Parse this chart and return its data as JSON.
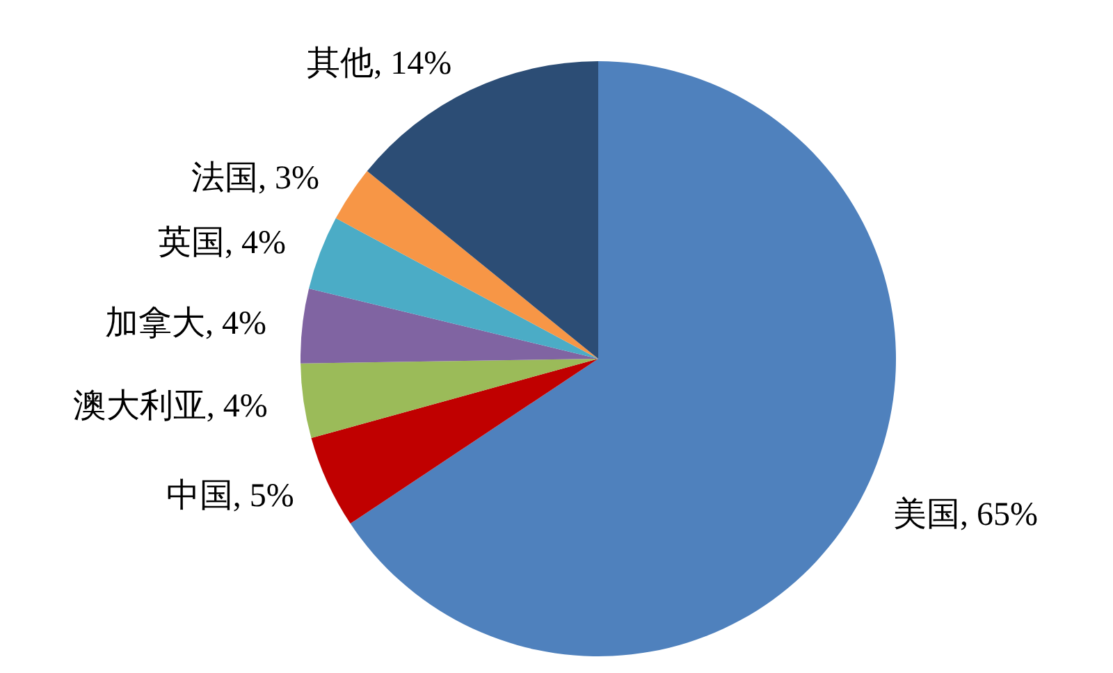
{
  "chart_data": {
    "type": "pie",
    "categories": [
      "美国",
      "中国",
      "澳大利亚",
      "加拿大",
      "英国",
      "法国",
      "其他"
    ],
    "values": [
      65,
      5,
      4,
      4,
      4,
      3,
      14
    ],
    "value_labels": [
      "65%",
      "5%",
      "4%",
      "4%",
      "4%",
      "3%",
      "14%"
    ],
    "colors": [
      "#4f81bd",
      "#c00000",
      "#9bbb59",
      "#8064a2",
      "#4bacc6",
      "#f79646",
      "#2c4d75"
    ],
    "legend": false
  }
}
